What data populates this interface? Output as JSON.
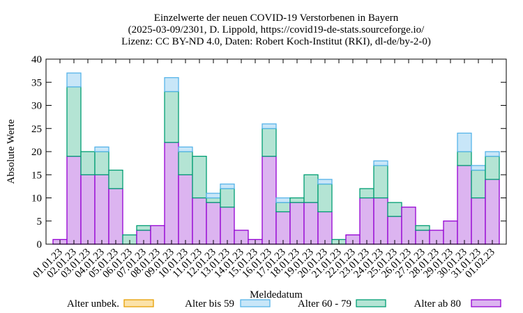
{
  "chart_data": {
    "type": "bar",
    "stacked": true,
    "title_lines": [
      "Einzelwerte der neuen COVID-19 Verstorbenen in Bayern",
      "(2025-03-09/2301, D. Lippold, https://covid19-de-stats.sourceforge.io/",
      "Lizenz: CC BY-ND 4.0, Daten: Robert Koch-Institut (RKI), dl-de/by-2-0)"
    ],
    "xlabel": "Meldedatum",
    "ylabel": "Absolute Werte",
    "ylim": [
      0,
      40
    ],
    "yticks": [
      0,
      5,
      10,
      15,
      20,
      25,
      30,
      35,
      40
    ],
    "grid": false,
    "legend_position": "bottom",
    "categories": [
      "01.01.23",
      "02.01.23",
      "03.01.23",
      "04.01.23",
      "05.01.23",
      "06.01.23",
      "07.01.23",
      "08.01.23",
      "09.01.23",
      "10.01.23",
      "11.01.23",
      "12.01.23",
      "13.01.23",
      "14.01.23",
      "15.01.23",
      "16.01.23",
      "17.01.23",
      "18.01.23",
      "19.01.23",
      "20.01.23",
      "21.01.23",
      "22.01.23",
      "23.01.23",
      "24.01.23",
      "25.01.23",
      "26.01.23",
      "27.01.23",
      "28.01.23",
      "29.01.23",
      "30.01.23",
      "31.01.23",
      "01.02.23"
    ],
    "series": [
      {
        "name": "Alter ab 80",
        "fill": "#dcb4f0",
        "stroke": "#9400d3",
        "values": [
          1,
          19,
          15,
          15,
          12,
          0,
          3,
          4,
          22,
          15,
          10,
          9,
          8,
          3,
          1,
          19,
          7,
          9,
          9,
          7,
          0,
          2,
          10,
          10,
          6,
          8,
          3,
          3,
          5,
          17,
          10,
          14
        ]
      },
      {
        "name": "Alter 60 - 79",
        "fill": "#b4e4d4",
        "stroke": "#009e73",
        "values": [
          0,
          15,
          5,
          5,
          4,
          2,
          1,
          0,
          11,
          5,
          9,
          1,
          4,
          0,
          0,
          6,
          2,
          1,
          6,
          6,
          1,
          0,
          2,
          7,
          3,
          0,
          1,
          0,
          0,
          3,
          6,
          5
        ]
      },
      {
        "name": "Alter bis 59",
        "fill": "#c8e6f8",
        "stroke": "#56b4e9",
        "values": [
          0,
          3,
          0,
          1,
          0,
          0,
          0,
          0,
          3,
          1,
          0,
          1,
          1,
          0,
          0,
          1,
          1,
          0,
          0,
          1,
          0,
          0,
          0,
          1,
          0,
          0,
          0,
          0,
          0,
          4,
          1,
          1
        ]
      },
      {
        "name": "Alter unbek.",
        "fill": "#fbe2a8",
        "stroke": "#e69f00",
        "values": [
          0,
          0,
          0,
          0,
          0,
          0,
          0,
          0,
          0,
          0,
          0,
          0,
          0,
          0,
          0,
          0,
          0,
          0,
          0,
          0,
          0,
          0,
          0,
          0,
          0,
          0,
          0,
          0,
          0,
          0,
          0,
          0
        ]
      }
    ],
    "legend_order": [
      "Alter unbek.",
      "Alter bis 59",
      "Alter 60 - 79",
      "Alter ab 80"
    ]
  }
}
